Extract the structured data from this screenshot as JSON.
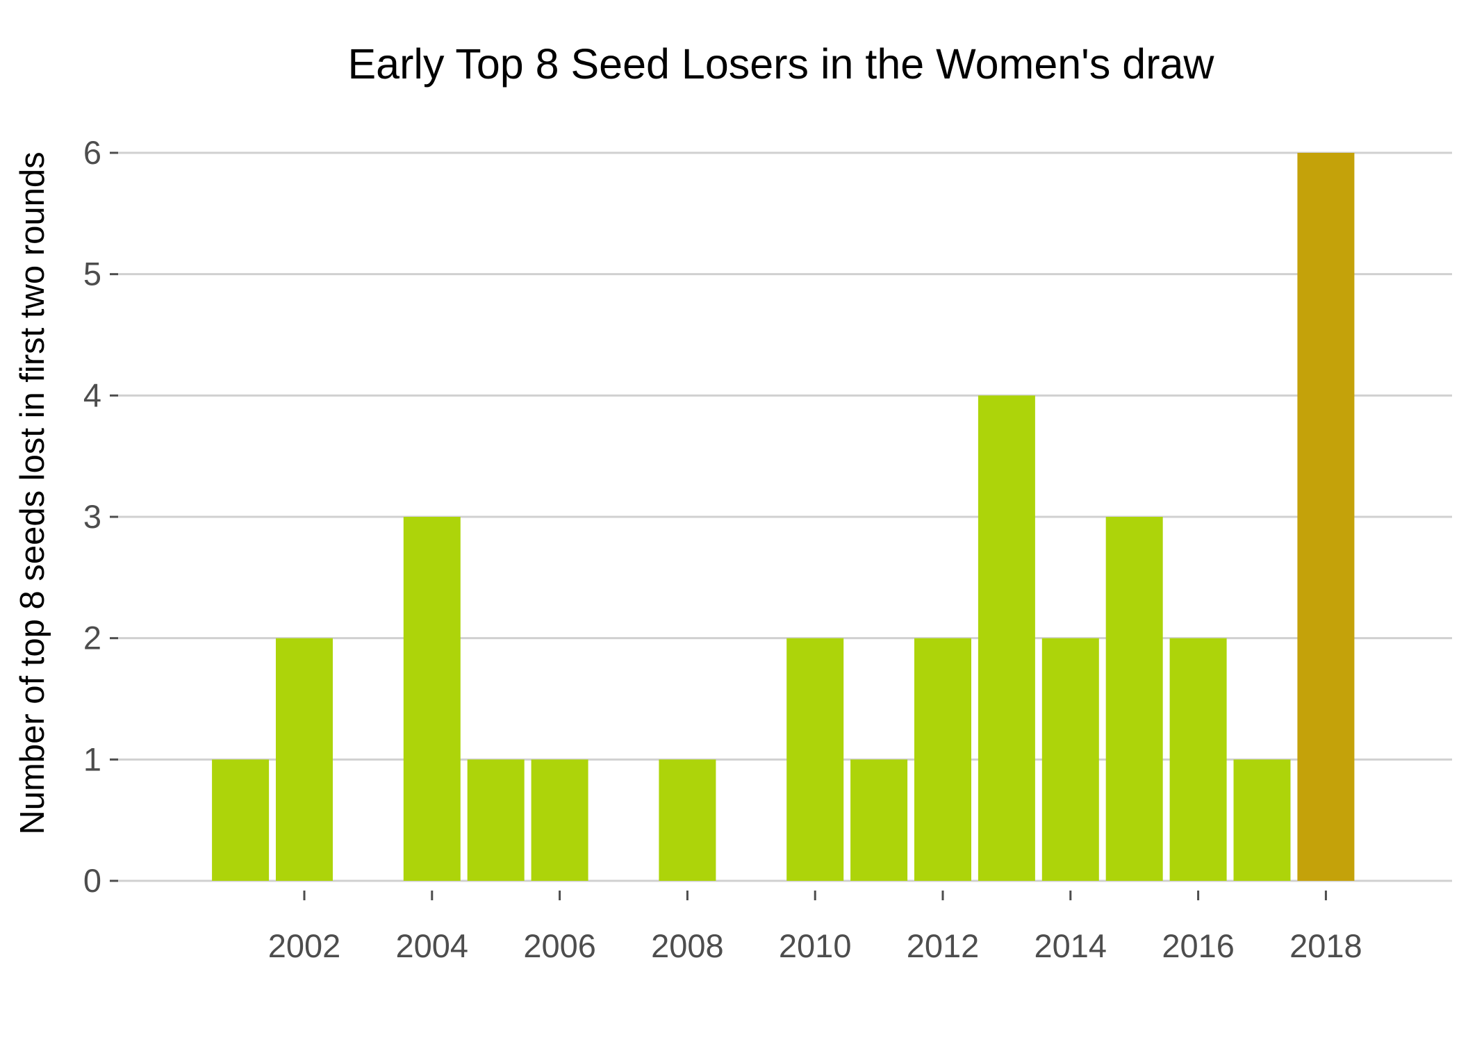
{
  "chart_data": {
    "type": "bar",
    "title": "Early Top 8 Seed Losers in the Women's draw",
    "xlabel": "",
    "ylabel": "Number of top 8 seeds lost in first two rounds",
    "x": [
      2001,
      2002,
      2003,
      2004,
      2005,
      2006,
      2007,
      2008,
      2009,
      2010,
      2011,
      2012,
      2013,
      2014,
      2015,
      2016,
      2017,
      2018
    ],
    "values": [
      1,
      2,
      0,
      3,
      1,
      1,
      0,
      1,
      0,
      2,
      1,
      2,
      4,
      2,
      3,
      2,
      1,
      6
    ],
    "x_ticks": [
      "2002",
      "2004",
      "2006",
      "2008",
      "2010",
      "2012",
      "2014",
      "2016",
      "2018"
    ],
    "y_ticks": [
      "0",
      "1",
      "2",
      "3",
      "4",
      "5",
      "6"
    ],
    "ylim": [
      0,
      6
    ],
    "grid": "horizontal",
    "colors": {
      "default_bar": "#add40a",
      "highlight_bar": "#c4a20a",
      "highlight_year": 2018
    }
  }
}
